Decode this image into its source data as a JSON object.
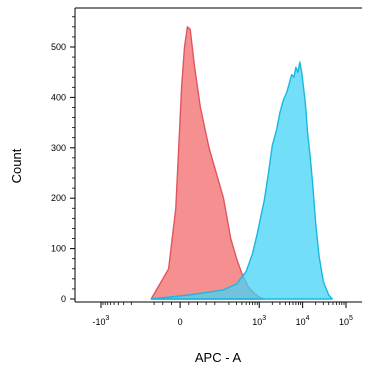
{
  "chart_data": {
    "type": "area",
    "title": "",
    "xlabel": "APC - A",
    "ylabel": "Count",
    "x_scale": "biexponential",
    "x_ticks": [
      {
        "value": -1000,
        "base": "-10",
        "exp": "3"
      },
      {
        "value": 0,
        "base": "0",
        "exp": ""
      },
      {
        "value": 1000,
        "base": "10",
        "exp": "3"
      },
      {
        "value": 10000,
        "base": "10",
        "exp": "4"
      },
      {
        "value": 100000,
        "base": "10",
        "exp": "5"
      }
    ],
    "y_ticks": [
      0,
      100,
      200,
      300,
      400,
      500
    ],
    "ylim": [
      0,
      580
    ],
    "grid": false,
    "series": [
      {
        "fill": "#f47c7c",
        "stroke": "#e05560",
        "points": [
          [
            -100,
            0
          ],
          [
            -40,
            60
          ],
          [
            -15,
            180
          ],
          [
            -5,
            300
          ],
          [
            5,
            420
          ],
          [
            15,
            500
          ],
          [
            25,
            540
          ],
          [
            35,
            535
          ],
          [
            50,
            460
          ],
          [
            70,
            380
          ],
          [
            100,
            300
          ],
          [
            150,
            200
          ],
          [
            220,
            120
          ],
          [
            300,
            80
          ],
          [
            400,
            50
          ],
          [
            550,
            25
          ],
          [
            750,
            12
          ],
          [
            1000,
            4
          ],
          [
            1300,
            0
          ]
        ]
      },
      {
        "fill": "#44d3f4",
        "stroke": "#19b8e0",
        "points": [
          [
            -100,
            0
          ],
          [
            30,
            8
          ],
          [
            150,
            18
          ],
          [
            300,
            30
          ],
          [
            500,
            55
          ],
          [
            700,
            90
          ],
          [
            900,
            130
          ],
          [
            1100,
            165
          ],
          [
            1300,
            195
          ],
          [
            1600,
            245
          ],
          [
            2000,
            305
          ],
          [
            2500,
            335
          ],
          [
            3000,
            370
          ],
          [
            3600,
            395
          ],
          [
            4300,
            410
          ],
          [
            5000,
            430
          ],
          [
            5600,
            445
          ],
          [
            6300,
            440
          ],
          [
            7000,
            460
          ],
          [
            7800,
            450
          ],
          [
            8600,
            470
          ],
          [
            9500,
            450
          ],
          [
            10500,
            420
          ],
          [
            11500,
            390
          ],
          [
            13000,
            330
          ],
          [
            15000,
            280
          ],
          [
            17000,
            230
          ],
          [
            20000,
            150
          ],
          [
            24000,
            85
          ],
          [
            30000,
            35
          ],
          [
            40000,
            8
          ],
          [
            48000,
            0
          ]
        ]
      }
    ]
  }
}
